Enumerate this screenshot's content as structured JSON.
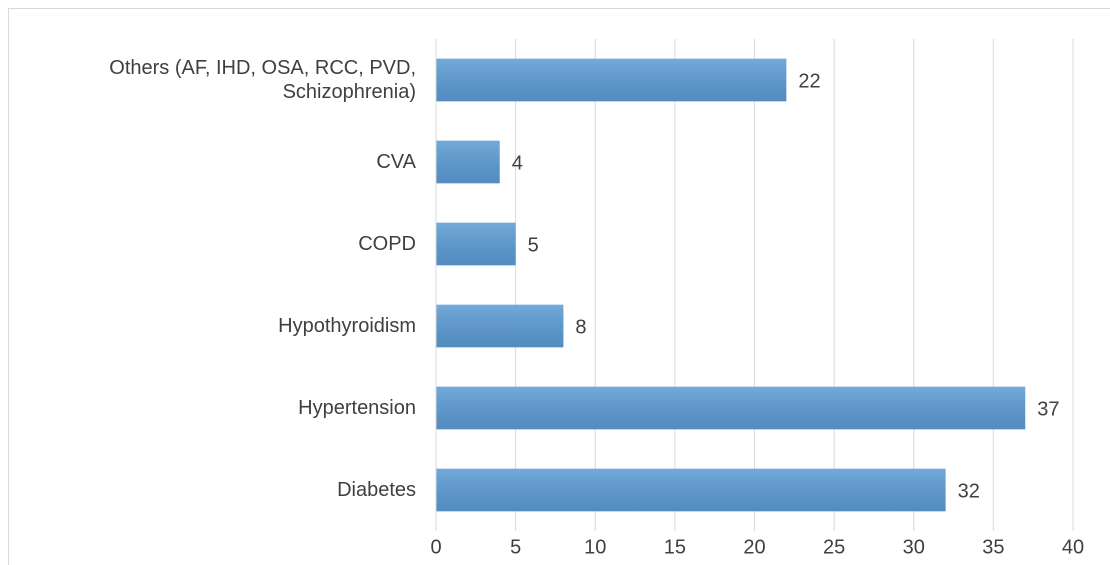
{
  "chart_data": {
    "type": "bar",
    "orientation": "horizontal",
    "categories": [
      "Others (AF, IHD, OSA, RCC, PVD, Schizophrenia)",
      "CVA",
      "COPD",
      "Hypothyroidism",
      "Hypertension",
      "Diabetes"
    ],
    "values": [
      22,
      4,
      5,
      8,
      37,
      32
    ],
    "color": "#5b9bd5",
    "xlim": [
      0,
      40
    ],
    "xticks": [
      0,
      5,
      10,
      15,
      20,
      25,
      30,
      35,
      40
    ],
    "grid": true
  }
}
